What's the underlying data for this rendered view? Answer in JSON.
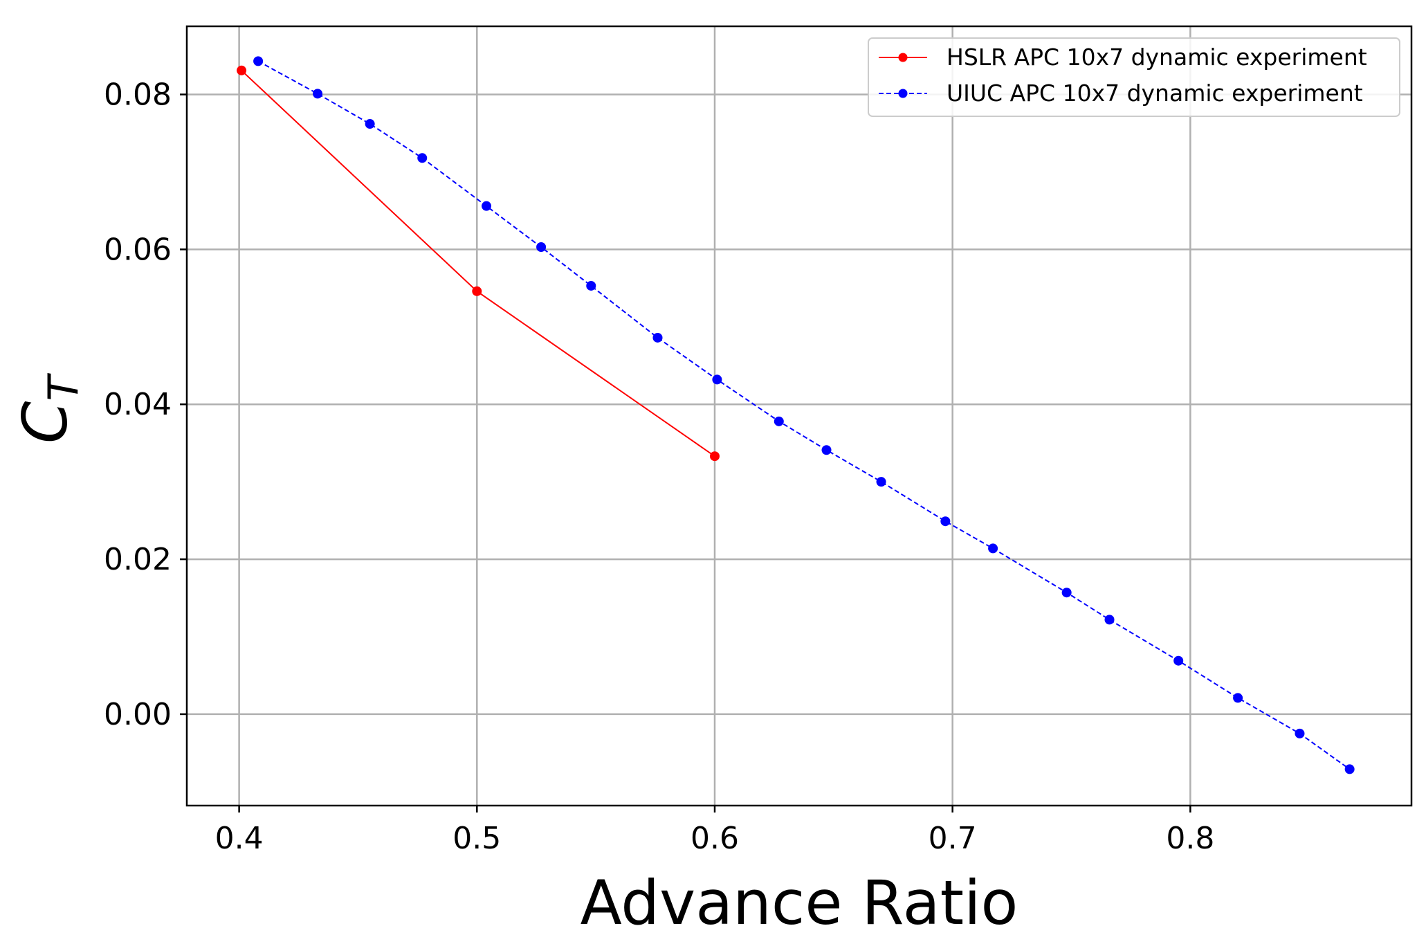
{
  "chart_data": {
    "type": "line",
    "xlabel": "Advance Ratio",
    "ylabel_main": "C",
    "ylabel_sub": "T",
    "xlim": [
      0.378,
      0.893
    ],
    "ylim": [
      -0.0118,
      0.0888
    ],
    "x_ticks": [
      "0.4",
      "0.5",
      "0.6",
      "0.7",
      "0.8"
    ],
    "x_tick_values": [
      0.4,
      0.5,
      0.6,
      0.7,
      0.8
    ],
    "y_ticks": [
      "0.00",
      "0.02",
      "0.04",
      "0.06",
      "0.08"
    ],
    "y_tick_values": [
      0.0,
      0.02,
      0.04,
      0.06,
      0.08
    ],
    "grid": true,
    "legend_position": "top-right",
    "series": [
      {
        "name": "HSLR APC 10x7 dynamic experiment",
        "color": "#ff0000",
        "line_style": "solid",
        "x": [
          0.401,
          0.5,
          0.6
        ],
        "y": [
          0.0831,
          0.0546,
          0.0333
        ]
      },
      {
        "name": "UIUC APC 10x7 dynamic experiment",
        "color": "#0000ff",
        "line_style": "dashed",
        "x": [
          0.408,
          0.433,
          0.455,
          0.477,
          0.504,
          0.527,
          0.548,
          0.576,
          0.601,
          0.627,
          0.647,
          0.67,
          0.697,
          0.717,
          0.748,
          0.766,
          0.795,
          0.82,
          0.846,
          0.867
        ],
        "y": [
          0.0843,
          0.0801,
          0.0762,
          0.0718,
          0.0656,
          0.0603,
          0.0553,
          0.0486,
          0.0432,
          0.0378,
          0.0341,
          0.03,
          0.0249,
          0.0214,
          0.0157,
          0.0122,
          0.0069,
          0.0021,
          -0.0025,
          -0.0071
        ]
      }
    ]
  }
}
